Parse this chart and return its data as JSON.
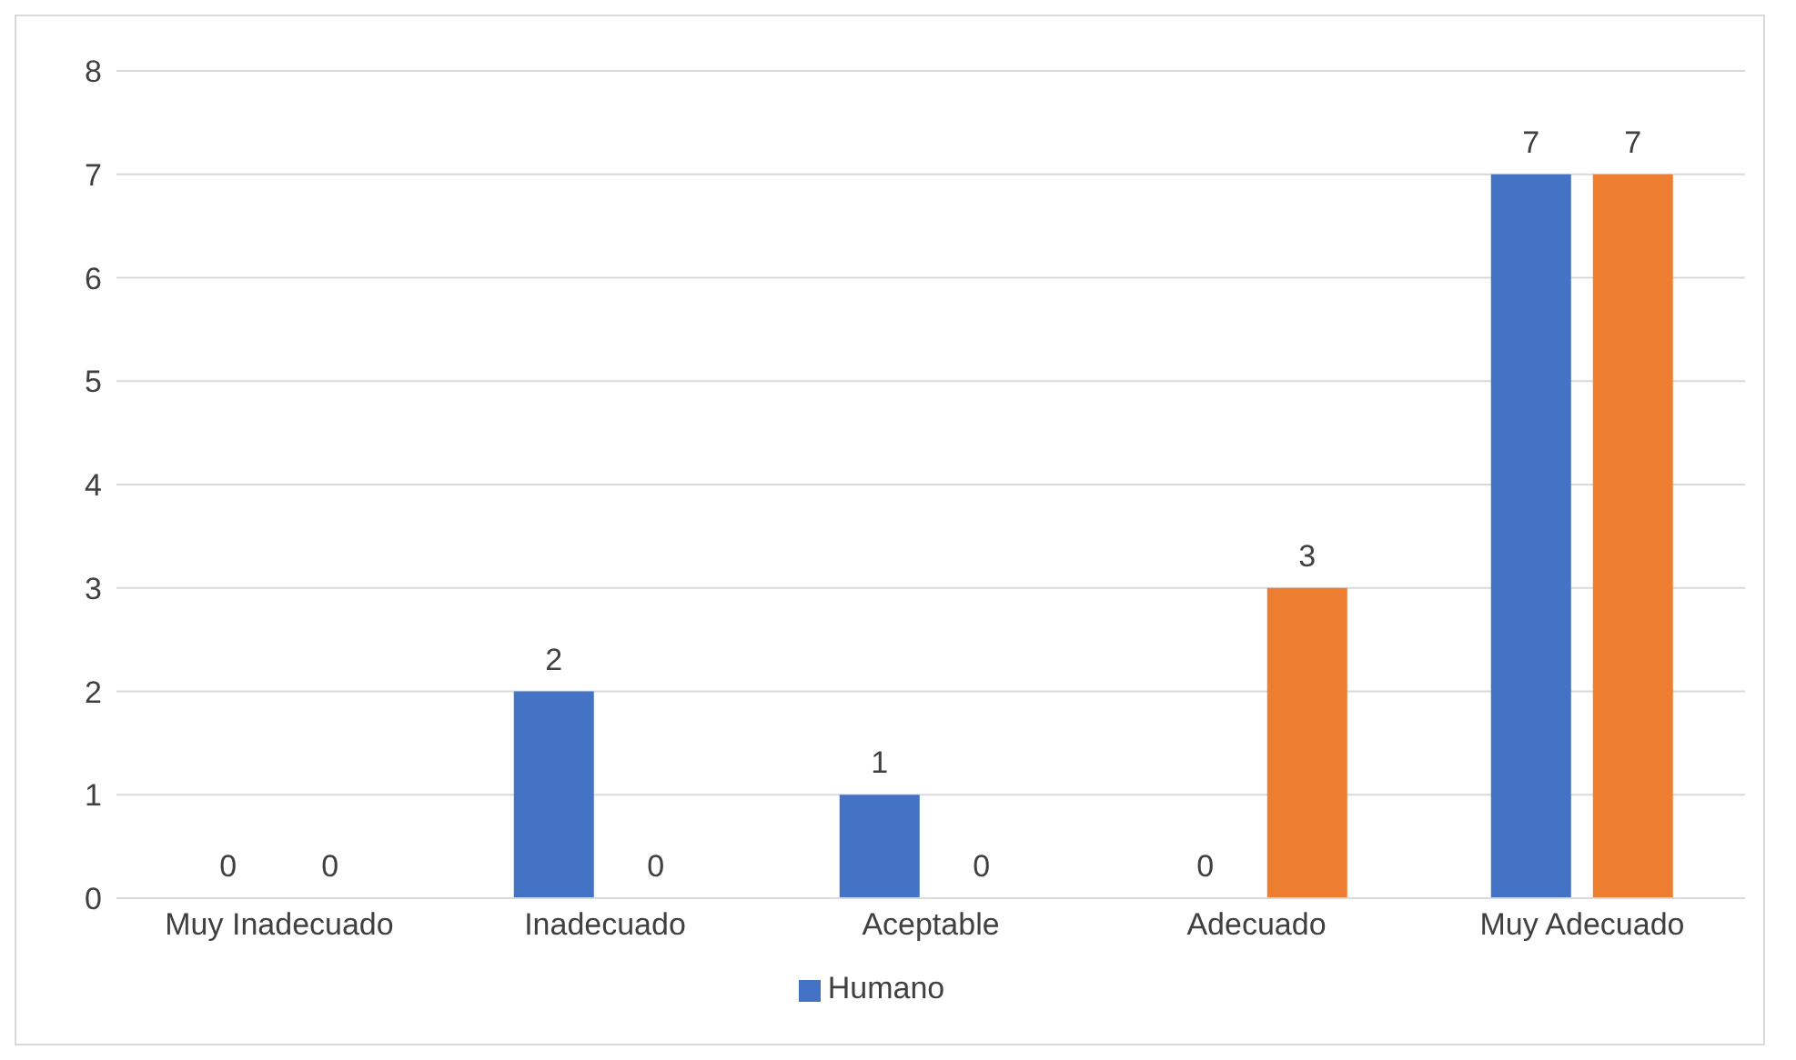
{
  "chart_data": {
    "type": "bar",
    "categories": [
      "Muy Inadecuado",
      "Inadecuado",
      "Aceptable",
      "Adecuado",
      "Muy Adecuado"
    ],
    "series": [
      {
        "name": "Humano",
        "color": "#4472c4",
        "values": [
          0,
          2,
          1,
          0,
          7
        ]
      },
      {
        "color": "#ed7d31",
        "values": [
          0,
          0,
          0,
          3,
          7
        ]
      }
    ],
    "ylim": [
      0,
      8
    ],
    "yticks": [
      0,
      1,
      2,
      3,
      4,
      5,
      6,
      7,
      8
    ],
    "grid": "y",
    "legend": "bottom",
    "data_labels": true
  }
}
